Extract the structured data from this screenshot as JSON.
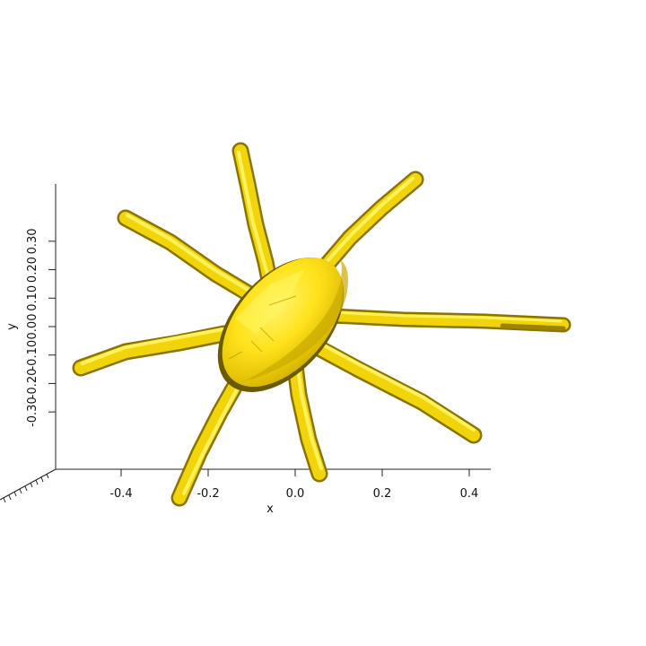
{
  "axes": {
    "x": {
      "title": "x",
      "ticks": [
        {
          "value": -0.4,
          "label": "-0.4"
        },
        {
          "value": -0.2,
          "label": "-0.2"
        },
        {
          "value": 0.0,
          "label": "0.0"
        },
        {
          "value": 0.2,
          "label": "0.2"
        },
        {
          "value": 0.4,
          "label": "0.4"
        }
      ]
    },
    "y": {
      "title": "y",
      "ticks": [
        {
          "value": 0.3,
          "label": "0.30"
        },
        {
          "value": 0.2,
          "label": "0.20"
        },
        {
          "value": 0.1,
          "label": "0.10"
        },
        {
          "value": 0.0,
          "label": "0.00"
        },
        {
          "value": -0.1,
          "label": "-0.10"
        },
        {
          "value": -0.2,
          "label": "-0.20"
        },
        {
          "value": -0.3,
          "label": "-0.30"
        }
      ]
    }
  },
  "colors": {
    "surface": "#f2d40a",
    "surface_light": "#ffee33",
    "surface_dark": "#8a7400",
    "axis": "#222222"
  },
  "shape": {
    "kind": "3d-isosurface",
    "description_icon": "spider-body-with-eight-legs-icon",
    "leg_count": 8
  }
}
